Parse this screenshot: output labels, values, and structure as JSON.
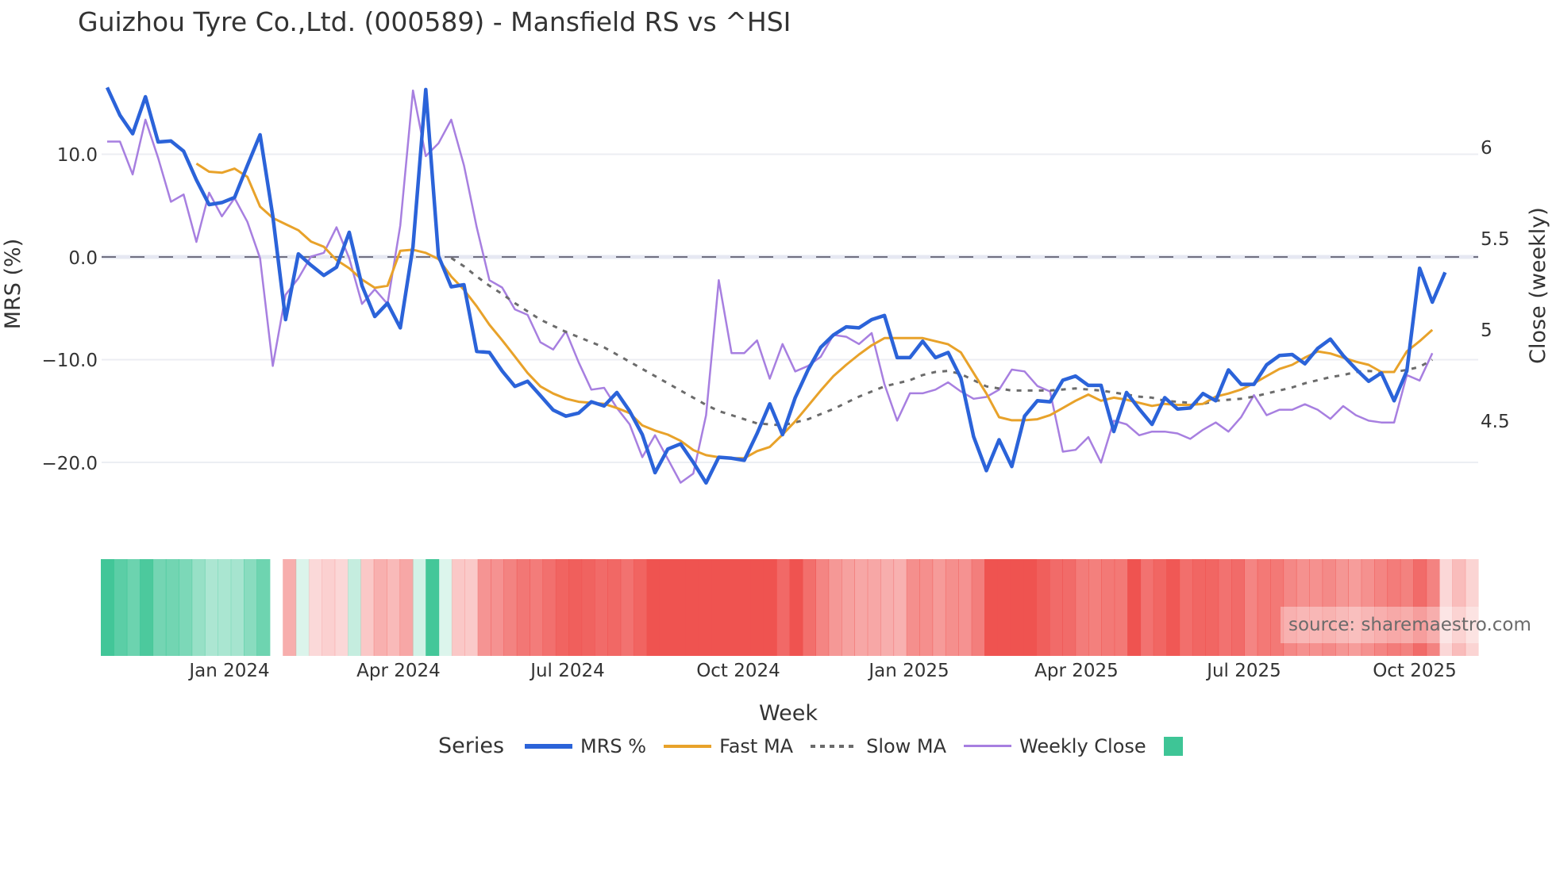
{
  "title": "Guizhou Tyre Co.,Ltd. (000589) - Mansfield RS vs ^HSI",
  "axes": {
    "y_left_label": "MRS (%)",
    "y_right_label": "Close (weekly)",
    "x_label": "Week",
    "y_left_ticks": [
      "10.0",
      "0.0",
      "−10.0",
      "−20.0"
    ],
    "y_right_ticks": [
      "6",
      "5.5",
      "5",
      "4.5"
    ],
    "x_ticks": [
      "Jan 2024",
      "Apr 2024",
      "Jul 2024",
      "Oct 2024",
      "Jan 2025",
      "Apr 2025",
      "Jul 2025",
      "Oct 2025"
    ]
  },
  "legend": {
    "title": "Series",
    "items": [
      {
        "label": "MRS %",
        "color": "#2b63d9",
        "style": "solid"
      },
      {
        "label": "Fast MA",
        "color": "#e8a22a",
        "style": "solid"
      },
      {
        "label": "Slow MA",
        "color": "#6b6b6b",
        "style": "dotted"
      },
      {
        "label": "Weekly Close",
        "color": "#a77fe0",
        "style": "solid"
      }
    ],
    "extra_swatch_color": "#3ec596"
  },
  "watermark": "source: sharemaestro.com",
  "colors": {
    "mrs": "#2b63d9",
    "fast_ma": "#e8a22a",
    "slow_ma": "#6b6b6b",
    "close": "#a77fe0",
    "positive": "#3ec596",
    "negative": "#ef5350"
  },
  "chart_data": {
    "type": "line",
    "title": "Guizhou Tyre Co.,Ltd. (000589) - Mansfield RS vs ^HSI",
    "xlabel": "Week",
    "ylabel": "MRS (%)",
    "ylabel_right": "Close (weekly)",
    "ylim": [
      -23,
      17
    ],
    "ylim_right": [
      4.2,
      6.35
    ],
    "x_start": "2023-10-20",
    "x_step": "1 week",
    "zero_line": 0,
    "series": [
      {
        "name": "MRS %",
        "axis": "left",
        "values": [
          16.5,
          13.8,
          12.0,
          15.6,
          11.2,
          11.3,
          10.3,
          7.5,
          5.1,
          5.3,
          5.8,
          8.9,
          11.9,
          4.0,
          -6.1,
          0.3,
          -0.8,
          -1.8,
          -1.0,
          2.4,
          -2.8,
          -5.8,
          -4.5,
          -6.9,
          1.0,
          16.3,
          0.1,
          -2.9,
          -2.7,
          -9.2,
          -9.3,
          -11.1,
          -12.6,
          -12.1,
          -13.5,
          -14.9,
          -15.5,
          -15.2,
          -14.1,
          -14.5,
          -13.2,
          -15.0,
          -17.3,
          -21.0,
          -18.7,
          -18.2,
          -20.0,
          -22.0,
          -19.5,
          -19.6,
          -19.8,
          -17.2,
          -14.3,
          -17.3,
          -13.7,
          -11.0,
          -8.8,
          -7.6,
          -6.8,
          -6.9,
          -6.1,
          -5.7,
          -9.8,
          -9.8,
          -8.2,
          -9.8,
          -9.3,
          -11.8,
          -17.5,
          -20.8,
          -17.8,
          -20.4,
          -15.5,
          -14.0,
          -14.1,
          -12.0,
          -11.6,
          -12.5,
          -12.5,
          -17.0,
          -13.2,
          -14.8,
          -16.3,
          -13.7,
          -14.8,
          -14.7,
          -13.3,
          -14.0,
          -11.0,
          -12.4,
          -12.4,
          -10.5,
          -9.6,
          -9.5,
          -10.4,
          -8.9,
          -8.0,
          -9.6,
          -10.9,
          -12.1,
          -11.3,
          -14.0,
          -11.1,
          -1.1,
          -4.4,
          -1.5
        ]
      },
      {
        "name": "Fast MA",
        "axis": "left",
        "values": [
          null,
          null,
          null,
          null,
          null,
          null,
          null,
          9.1,
          8.3,
          8.2,
          8.6,
          7.8,
          4.9,
          3.8,
          3.2,
          2.6,
          1.5,
          1.0,
          -0.3,
          -1.1,
          -2.2,
          -3.0,
          -2.8,
          0.6,
          0.7,
          0.4,
          -0.2,
          -1.9,
          -3.2,
          -4.8,
          -6.6,
          -8.1,
          -9.7,
          -11.3,
          -12.6,
          -13.3,
          -13.8,
          -14.1,
          -14.2,
          -14.3,
          -14.7,
          -15.2,
          -16.4,
          -16.9,
          -17.3,
          -17.9,
          -18.8,
          -19.3,
          -19.5,
          -19.6,
          -19.6,
          -18.9,
          -18.5,
          -17.3,
          -16.0,
          -14.5,
          -13.0,
          -11.6,
          -10.5,
          -9.5,
          -8.6,
          -7.9,
          -7.9,
          -7.9,
          -7.9,
          -8.2,
          -8.5,
          -9.3,
          -11.3,
          -13.3,
          -15.6,
          -15.9,
          -15.9,
          -15.8,
          -15.4,
          -14.7,
          -14.0,
          -13.4,
          -14.0,
          -13.7,
          -13.9,
          -14.2,
          -14.5,
          -14.3,
          -14.4,
          -14.4,
          -14.3,
          -13.6,
          -13.3,
          -12.9,
          -12.3,
          -11.6,
          -10.9,
          -10.5,
          -9.8,
          -9.2,
          -9.4,
          -9.8,
          -10.2,
          -10.5,
          -11.2,
          -11.2,
          -9.2,
          -8.2,
          -7.1
        ]
      },
      {
        "name": "Slow MA",
        "axis": "left",
        "values": [
          null,
          null,
          null,
          null,
          null,
          null,
          null,
          null,
          null,
          null,
          null,
          null,
          null,
          null,
          null,
          null,
          null,
          null,
          null,
          null,
          null,
          null,
          null,
          null,
          null,
          null,
          null,
          -0.1,
          -0.9,
          -1.9,
          -2.8,
          -3.6,
          -4.5,
          -5.3,
          -6.1,
          -6.7,
          -7.3,
          -7.8,
          -8.3,
          -8.8,
          -9.5,
          -10.2,
          -10.9,
          -11.6,
          -12.3,
          -13.0,
          -13.7,
          -14.4,
          -15.0,
          -15.4,
          -15.8,
          -16.2,
          -16.3,
          -16.4,
          -16.1,
          -15.8,
          -15.3,
          -14.8,
          -14.2,
          -13.6,
          -13.1,
          -12.6,
          -12.3,
          -12.0,
          -11.5,
          -11.2,
          -11.1,
          -11.4,
          -12.0,
          -12.6,
          -12.8,
          -13.0,
          -13.0,
          -13.0,
          -13.0,
          -12.9,
          -12.8,
          -12.9,
          -13.0,
          -13.2,
          -13.4,
          -13.6,
          -13.7,
          -14.0,
          -14.1,
          -14.2,
          -14.3,
          -14.0,
          -13.9,
          -13.8,
          -13.6,
          -13.3,
          -13.0,
          -12.7,
          -12.3,
          -12.0,
          -11.7,
          -11.5,
          -11.2,
          -11.1,
          -11.2,
          -11.2,
          -11.0,
          -10.7,
          -10.0
        ]
      },
      {
        "name": "Weekly Close",
        "axis": "right",
        "values": [
          6.05,
          6.05,
          5.87,
          6.17,
          5.96,
          5.72,
          5.76,
          5.5,
          5.77,
          5.64,
          5.74,
          5.61,
          5.41,
          4.82,
          5.21,
          5.3,
          5.42,
          5.44,
          5.58,
          5.41,
          5.16,
          5.24,
          5.16,
          5.59,
          6.33,
          5.97,
          6.04,
          6.17,
          5.92,
          5.58,
          5.29,
          5.25,
          5.13,
          5.1,
          4.95,
          4.91,
          5.01,
          4.84,
          4.69,
          4.7,
          4.59,
          4.5,
          4.32,
          4.44,
          4.31,
          4.18,
          4.23,
          4.55,
          5.29,
          4.89,
          4.89,
          4.96,
          4.75,
          4.94,
          4.79,
          4.82,
          4.87,
          4.99,
          4.98,
          4.94,
          5.0,
          4.72,
          4.52,
          4.67,
          4.67,
          4.69,
          4.73,
          4.68,
          4.64,
          4.65,
          4.69,
          4.8,
          4.79,
          4.71,
          4.68,
          4.35,
          4.36,
          4.43,
          4.29,
          4.52,
          4.5,
          4.44,
          4.46,
          4.46,
          4.45,
          4.42,
          4.47,
          4.51,
          4.46,
          4.54,
          4.66,
          4.55,
          4.58,
          4.58,
          4.61,
          4.58,
          4.53,
          4.6,
          4.55,
          4.52,
          4.51,
          4.51,
          4.77,
          4.74,
          4.89
        ]
      }
    ],
    "heatmap_strip": {
      "description": "Per-week MRS color band: green = positive, red = negative, intensity ~ magnitude",
      "values_from": "MRS %"
    }
  }
}
